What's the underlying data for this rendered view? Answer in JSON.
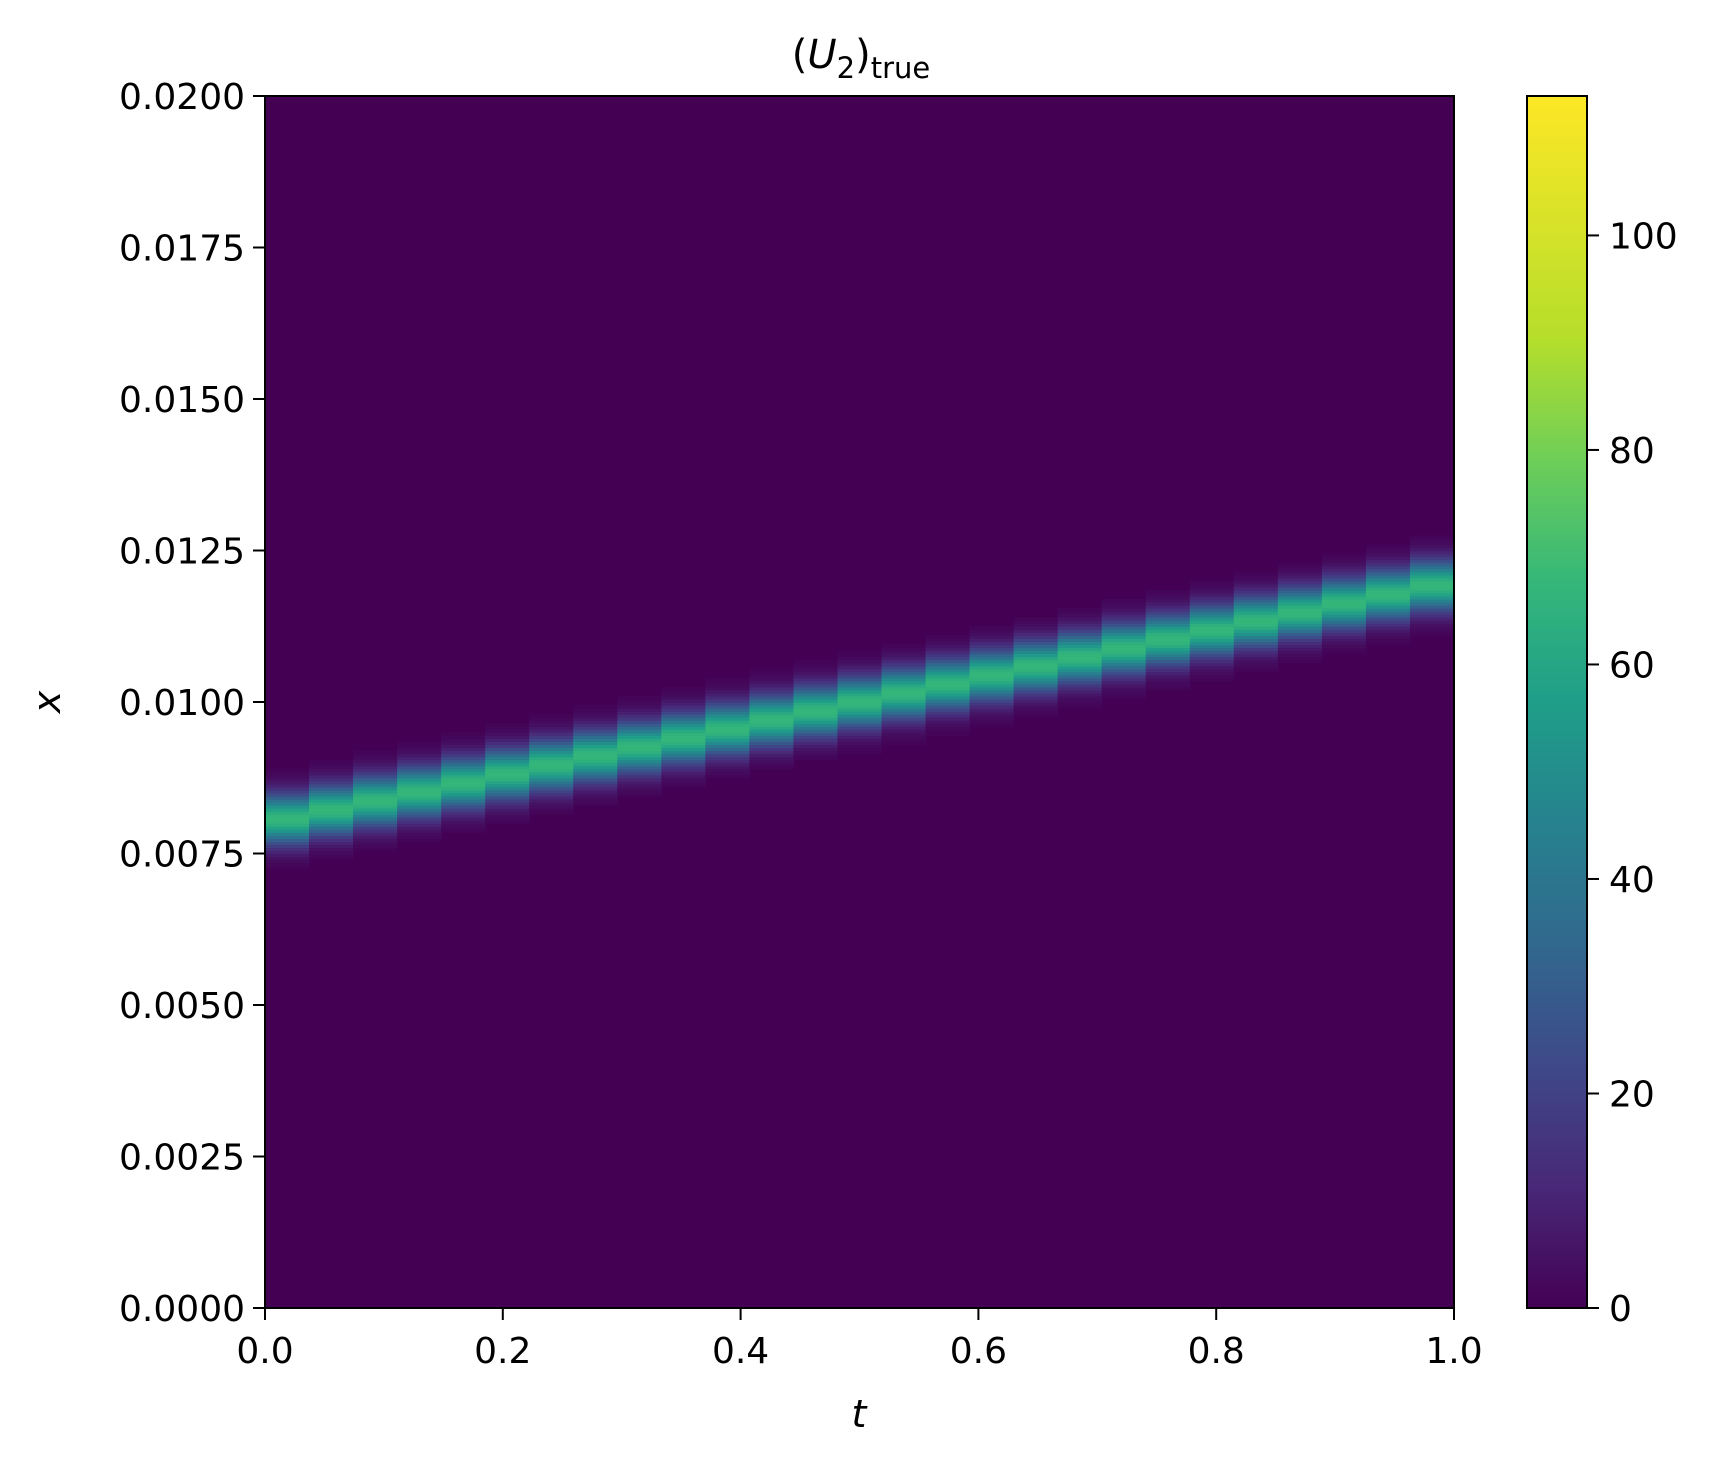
{
  "chart_data": {
    "type": "heatmap",
    "title": {
      "prefix": "(",
      "symbol": "U",
      "subscript": "2",
      "close": ")",
      "suffix": "true"
    },
    "xlabel": "t",
    "ylabel": "x",
    "xlim": [
      0.0,
      1.0
    ],
    "ylim": [
      0.0,
      0.02
    ],
    "xticks": [
      "0.0",
      "0.2",
      "0.4",
      "0.6",
      "0.8",
      "1.0"
    ],
    "yticks": [
      "0.0000",
      "0.0025",
      "0.0050",
      "0.0075",
      "0.0100",
      "0.0125",
      "0.0150",
      "0.0175",
      "0.0200"
    ],
    "colormap": "viridis",
    "colorbar": {
      "range": [
        0,
        113
      ],
      "ticks": [
        "0",
        "20",
        "40",
        "60",
        "80",
        "100"
      ]
    },
    "background_value": 0,
    "time_steps": 27,
    "band": {
      "description_values": "traveling pulse center x(t) = x0 + slope * t",
      "x0": 0.008,
      "slope": 0.004,
      "peak_value": 75,
      "width_x": 0.00045
    },
    "grid": false,
    "legend": "none"
  }
}
